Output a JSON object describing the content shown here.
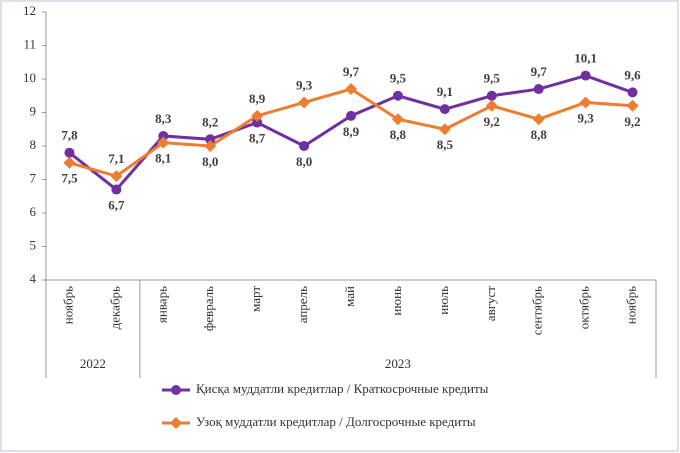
{
  "chart_data": {
    "type": "line",
    "categories": [
      "ноябрь",
      "декабрь",
      "январь",
      "февраль",
      "март",
      "апрель",
      "май",
      "июнь",
      "июль",
      "август",
      "сентябрь",
      "октябрь",
      "ноябрь"
    ],
    "years": [
      "2022",
      "2022",
      "2023",
      "2023",
      "2023",
      "2023",
      "2023",
      "2023",
      "2023",
      "2023",
      "2023",
      "2023",
      "2023"
    ],
    "series": [
      {
        "name": "Қисқа муддатли кредитлар / Краткосрочные кредиты",
        "color": "#7030a0",
        "marker": "circle",
        "values": [
          7.8,
          6.7,
          8.3,
          8.2,
          8.7,
          8.0,
          8.9,
          9.5,
          9.1,
          9.5,
          9.7,
          10.1,
          9.6
        ],
        "value_labels": [
          "7,8",
          "6,7",
          "8,3",
          "8,2",
          "8,7",
          "8,0",
          "8,9",
          "9,5",
          "9,1",
          "9,5",
          "9,7",
          "10,1",
          "9,6"
        ]
      },
      {
        "name": "Узоқ муддатли кредитлар / Долгосрочные кредиты",
        "color": "#ed7d31",
        "marker": "diamond",
        "values": [
          7.5,
          7.1,
          8.1,
          8.0,
          8.9,
          9.3,
          9.7,
          8.8,
          8.5,
          9.2,
          8.8,
          9.3,
          9.2
        ],
        "value_labels": [
          "7,5",
          "7,1",
          "8,1",
          "8,0",
          "8,9",
          "9,3",
          "9,7",
          "8,8",
          "8,5",
          "9,2",
          "8,8",
          "9,3",
          "9,2"
        ]
      }
    ],
    "ylim": [
      4,
      12
    ],
    "yticks": [
      4,
      5,
      6,
      7,
      8,
      9,
      10,
      11,
      12
    ],
    "grid": false,
    "legend": "bottom"
  }
}
